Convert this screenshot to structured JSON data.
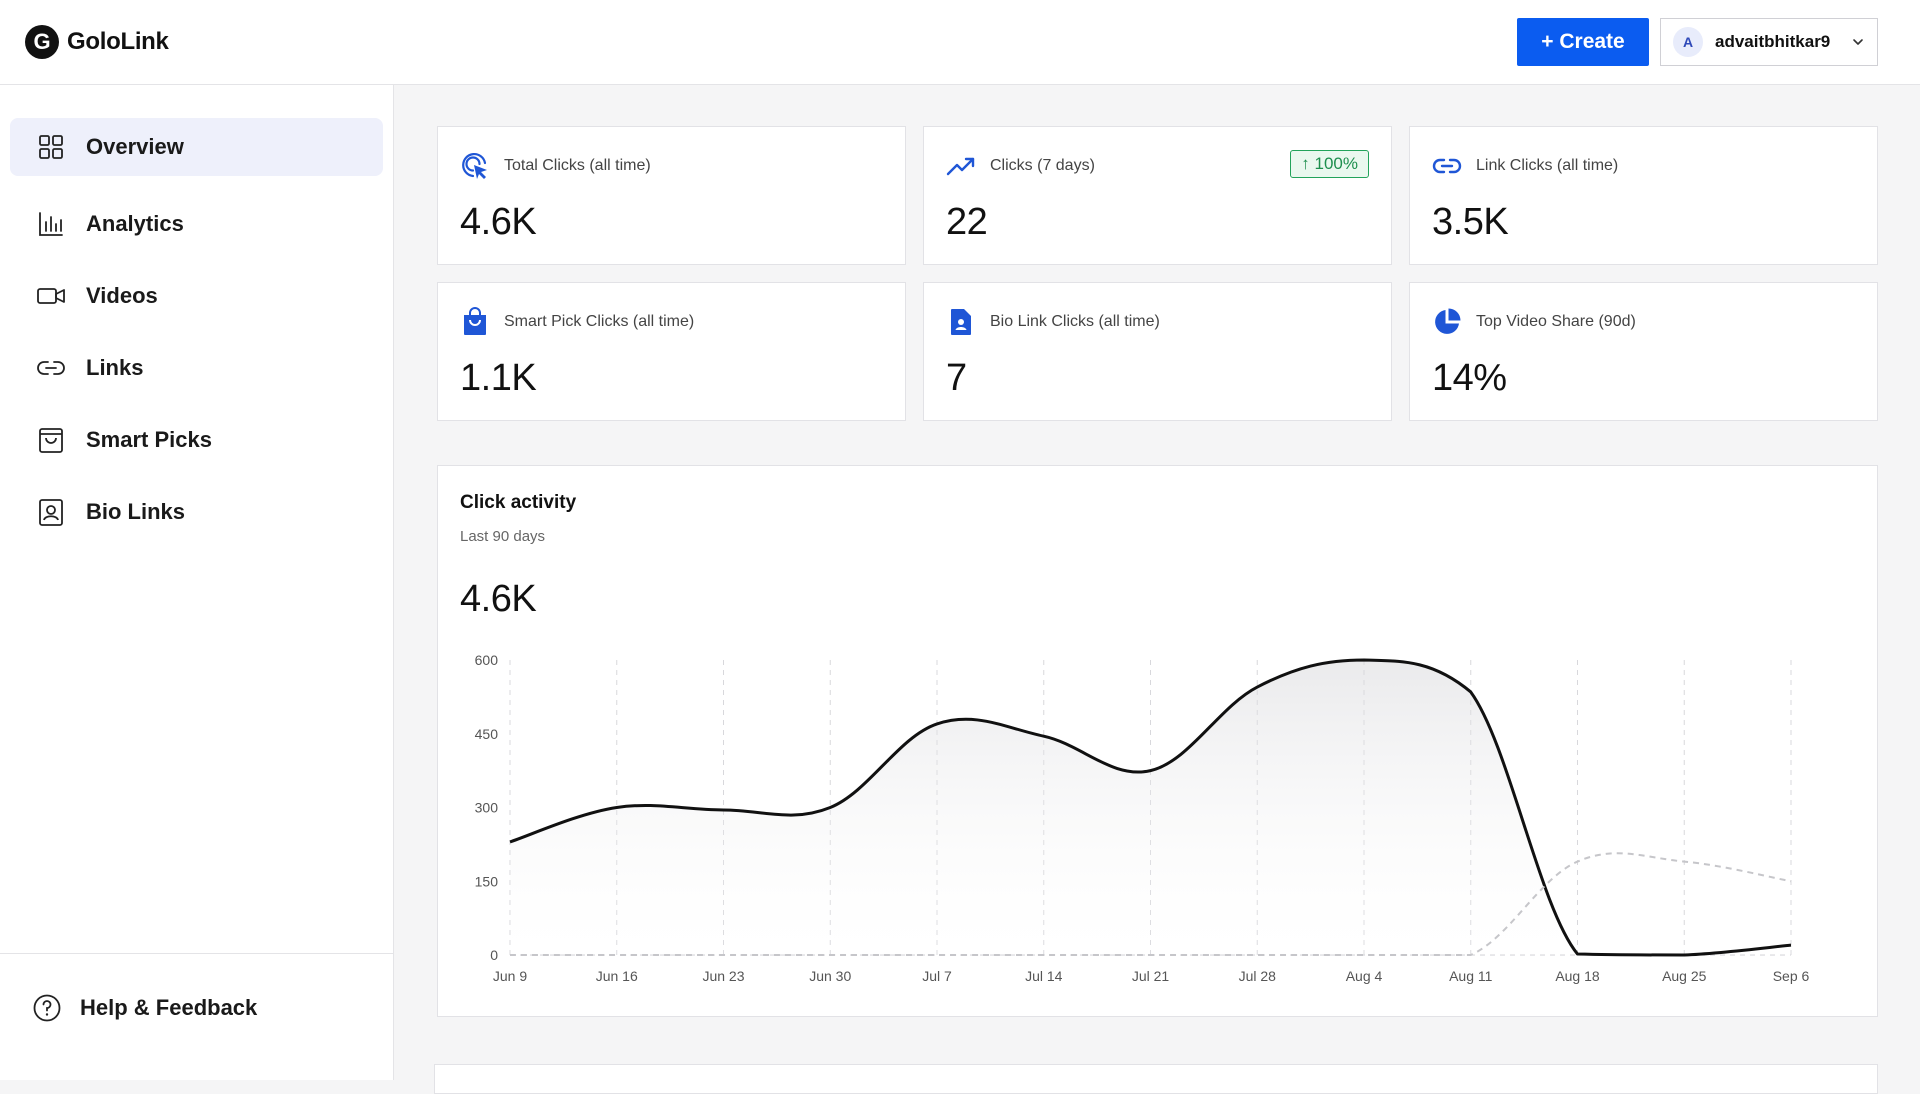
{
  "header": {
    "brand_initial": "G",
    "brand_name": "GoloLink",
    "create_label": "+ Create",
    "avatar_initial": "A",
    "username": "advaitbhitkar9"
  },
  "sidebar": {
    "items": [
      {
        "label": "Overview",
        "icon": "grid-icon",
        "active": true
      },
      {
        "label": "Analytics",
        "icon": "bar-chart-icon"
      },
      {
        "label": "Videos",
        "icon": "video-camera-icon"
      },
      {
        "label": "Links",
        "icon": "link-icon"
      },
      {
        "label": "Smart Picks",
        "icon": "shopping-bag-icon"
      },
      {
        "label": "Bio Links",
        "icon": "profile-card-icon"
      }
    ],
    "help_label": "Help & Feedback"
  },
  "stats": [
    {
      "label": "Total Clicks (all time)",
      "value": "4.6K",
      "icon": "cursor-click-icon"
    },
    {
      "label": "Clicks (7 days)",
      "value": "22",
      "icon": "trend-up-icon",
      "badge": "↑ 100%"
    },
    {
      "label": "Link Clicks (all time)",
      "value": "3.5K",
      "icon": "link-icon"
    },
    {
      "label": "Smart Pick Clicks (all time)",
      "value": "1.1K",
      "icon": "shopping-bag-icon"
    },
    {
      "label": "Bio Link Clicks (all time)",
      "value": "7",
      "icon": "contact-file-icon"
    },
    {
      "label": "Top Video Share (90d)",
      "value": "14%",
      "icon": "pie-chart-icon"
    }
  ],
  "colors": {
    "accent": "#0b5cf0",
    "stat_icon": "#1f56d6",
    "badge_green": "#23a35b"
  },
  "chart_data": {
    "type": "line",
    "title": "Click activity",
    "subtitle": "Last 90 days",
    "total": "4.6K",
    "x": [
      "Jun 9",
      "Jun 16",
      "Jun 23",
      "Jun 30",
      "Jul 7",
      "Jul 14",
      "Jul 21",
      "Jul 28",
      "Aug 4",
      "Aug 11",
      "Aug 18",
      "Aug 25",
      "Sep 6"
    ],
    "y_ticks": [
      0,
      150,
      300,
      450,
      600
    ],
    "ylim": [
      0,
      600
    ],
    "grid": true,
    "series": [
      {
        "style": "solid",
        "values": [
          230,
          300,
          295,
          300,
          470,
          445,
          375,
          545,
          600,
          535,
          2,
          0,
          20
        ]
      },
      {
        "style": "dashed",
        "values": [
          0,
          0,
          0,
          0,
          0,
          0,
          0,
          0,
          0,
          0,
          190,
          190,
          150
        ]
      }
    ]
  }
}
